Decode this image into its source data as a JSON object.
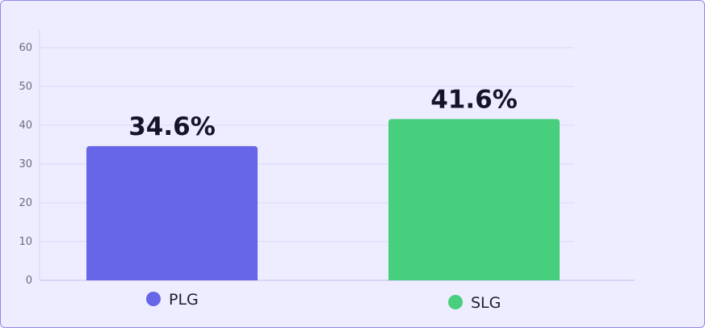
{
  "chart_data": {
    "type": "bar",
    "categories": [
      "PLG",
      "SLG"
    ],
    "values": [
      34.6,
      41.6
    ],
    "data_labels": [
      "34.6%",
      "41.6%"
    ],
    "colors": [
      "#6766e8",
      "#48cf7d"
    ],
    "title": "",
    "xlabel": "",
    "ylabel": "",
    "ylim": [
      0,
      60
    ],
    "yticks": [
      0,
      10,
      20,
      30,
      40,
      50,
      60
    ],
    "grid": true,
    "legend": "bottom",
    "legend_entries": [
      "PLG",
      "SLG"
    ]
  }
}
